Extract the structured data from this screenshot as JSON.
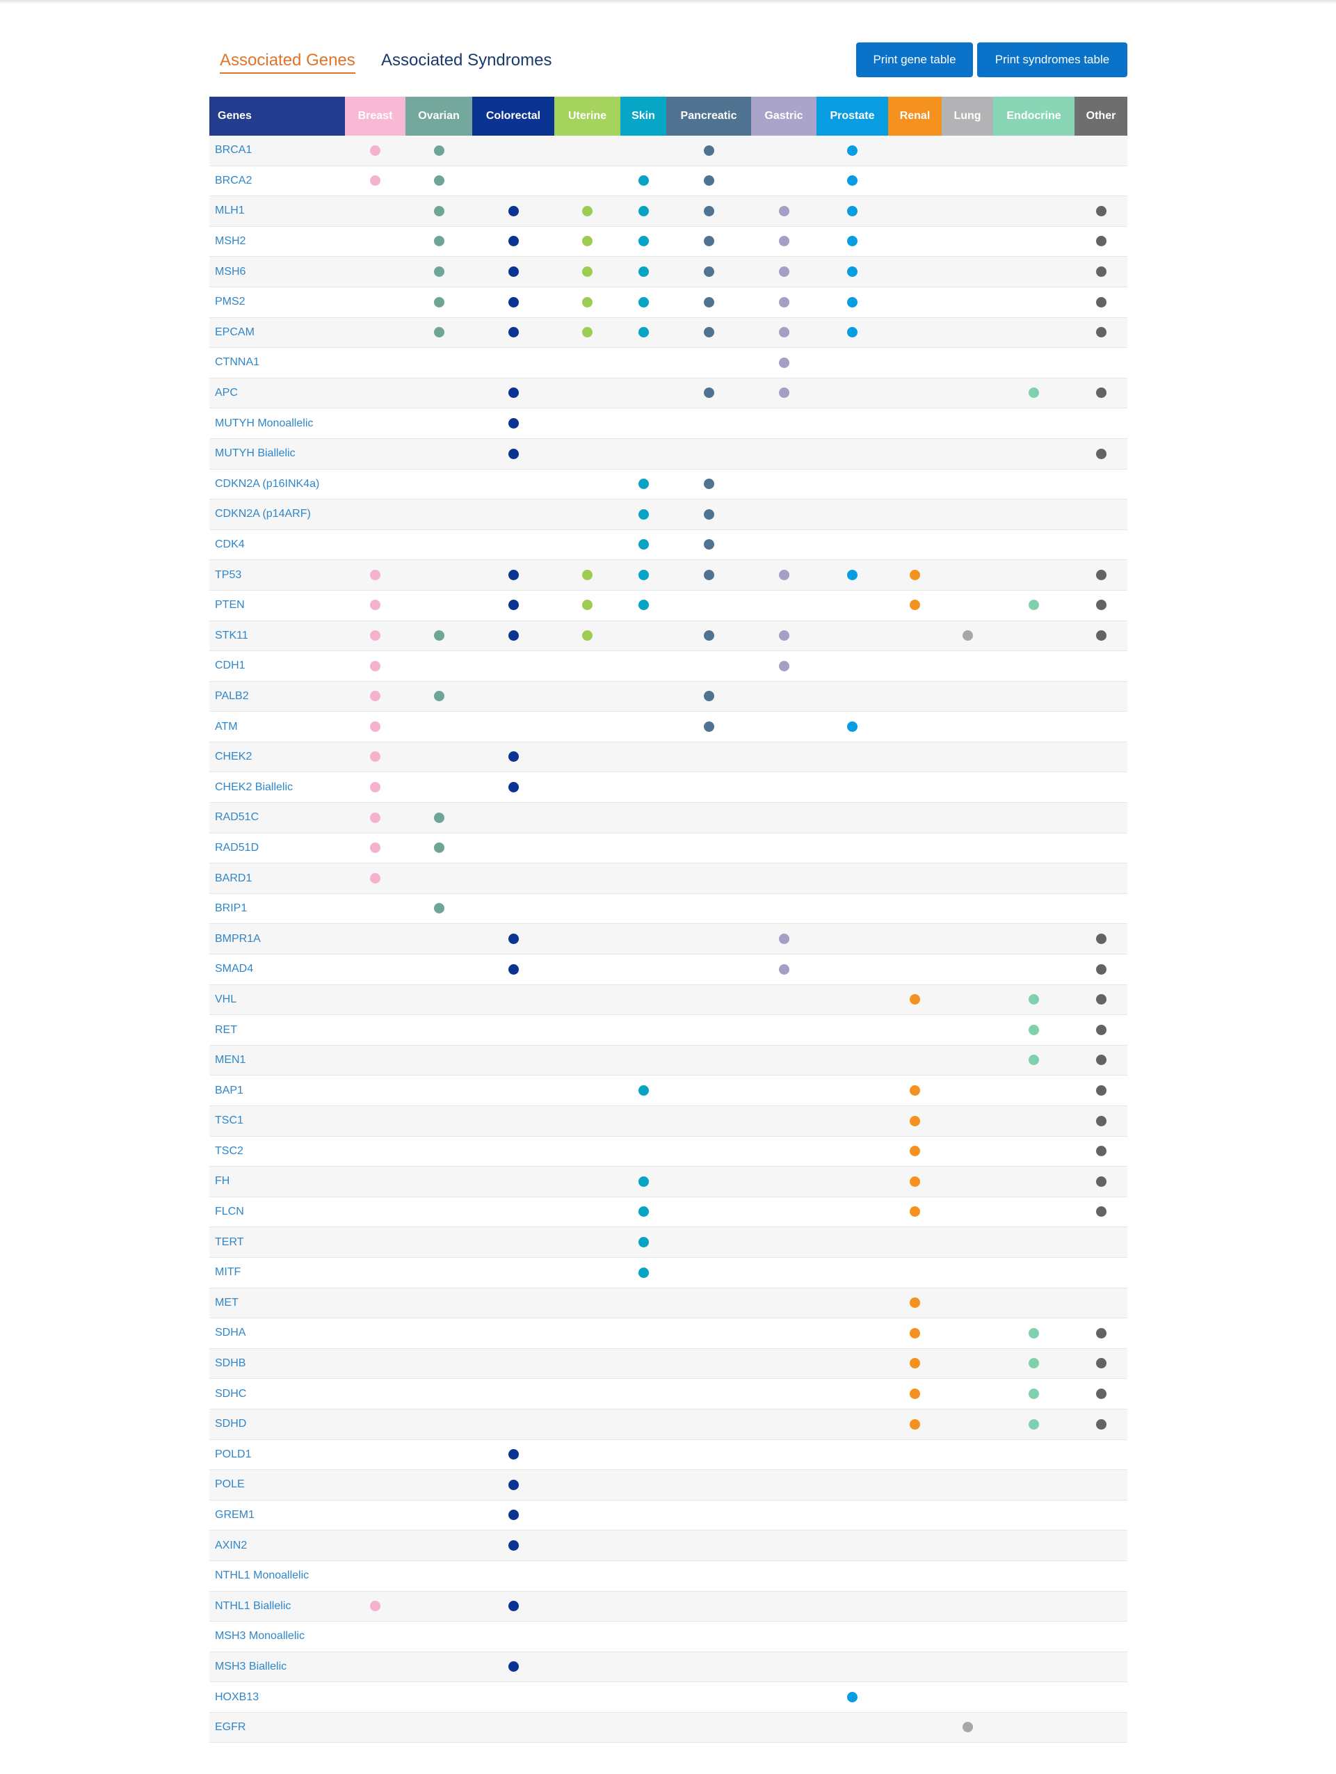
{
  "tabs": {
    "genes": "Associated Genes",
    "syndromes": "Associated Syndromes"
  },
  "buttons": {
    "print_gene": "Print gene table",
    "print_syndromes": "Print syndromes table"
  },
  "columns": [
    {
      "key": "genes",
      "label": "Genes",
      "color": "#233c8d"
    },
    {
      "key": "breast",
      "label": "Breast",
      "color": "#f7b9d4",
      "dot": "#f4b2cf"
    },
    {
      "key": "ovarian",
      "label": "Ovarian",
      "color": "#74a89c",
      "dot": "#6ea596"
    },
    {
      "key": "colorectal",
      "label": "Colorectal",
      "color": "#0b3391",
      "dot": "#0b3391"
    },
    {
      "key": "uterine",
      "label": "Uterine",
      "color": "#a5d35d",
      "dot": "#9dcc55"
    },
    {
      "key": "skin",
      "label": "Skin",
      "color": "#07a6c7",
      "dot": "#07a2c4"
    },
    {
      "key": "pancreatic",
      "label": "Pancreatic",
      "color": "#507391",
      "dot": "#507391"
    },
    {
      "key": "gastric",
      "label": "Gastric",
      "color": "#aaa4ca",
      "dot": "#a49fc5"
    },
    {
      "key": "prostate",
      "label": "Prostate",
      "color": "#089ce2",
      "dot": "#089ce2"
    },
    {
      "key": "renal",
      "label": "Renal",
      "color": "#f5911e",
      "dot": "#f5911e"
    },
    {
      "key": "lung",
      "label": "Lung",
      "color": "#b3b3b5",
      "dot": "#a7a7a9"
    },
    {
      "key": "endocrine",
      "label": "Endocrine",
      "color": "#88d6b6",
      "dot": "#80d0ae"
    },
    {
      "key": "other",
      "label": "Other",
      "color": "#6e6e6e",
      "dot": "#636363"
    }
  ],
  "rows": [
    {
      "gene": "BRCA1",
      "marks": [
        "breast",
        "ovarian",
        "pancreatic",
        "prostate"
      ]
    },
    {
      "gene": "BRCA2",
      "marks": [
        "breast",
        "ovarian",
        "skin",
        "pancreatic",
        "prostate"
      ]
    },
    {
      "gene": "MLH1",
      "marks": [
        "ovarian",
        "colorectal",
        "uterine",
        "skin",
        "pancreatic",
        "gastric",
        "prostate",
        "other"
      ]
    },
    {
      "gene": "MSH2",
      "marks": [
        "ovarian",
        "colorectal",
        "uterine",
        "skin",
        "pancreatic",
        "gastric",
        "prostate",
        "other"
      ]
    },
    {
      "gene": "MSH6",
      "marks": [
        "ovarian",
        "colorectal",
        "uterine",
        "skin",
        "pancreatic",
        "gastric",
        "prostate",
        "other"
      ]
    },
    {
      "gene": "PMS2",
      "marks": [
        "ovarian",
        "colorectal",
        "uterine",
        "skin",
        "pancreatic",
        "gastric",
        "prostate",
        "other"
      ]
    },
    {
      "gene": "EPCAM",
      "marks": [
        "ovarian",
        "colorectal",
        "uterine",
        "skin",
        "pancreatic",
        "gastric",
        "prostate",
        "other"
      ]
    },
    {
      "gene": "CTNNA1",
      "marks": [
        "gastric"
      ]
    },
    {
      "gene": "APC",
      "marks": [
        "colorectal",
        "pancreatic",
        "gastric",
        "endocrine",
        "other"
      ]
    },
    {
      "gene": "MUTYH Monoallelic",
      "marks": [
        "colorectal"
      ]
    },
    {
      "gene": "MUTYH Biallelic",
      "marks": [
        "colorectal",
        "other"
      ]
    },
    {
      "gene": "CDKN2A (p16INK4a)",
      "marks": [
        "skin",
        "pancreatic"
      ]
    },
    {
      "gene": "CDKN2A (p14ARF)",
      "marks": [
        "skin",
        "pancreatic"
      ]
    },
    {
      "gene": "CDK4",
      "marks": [
        "skin",
        "pancreatic"
      ]
    },
    {
      "gene": "TP53",
      "marks": [
        "breast",
        "colorectal",
        "uterine",
        "skin",
        "pancreatic",
        "gastric",
        "prostate",
        "renal",
        "other"
      ]
    },
    {
      "gene": "PTEN",
      "marks": [
        "breast",
        "colorectal",
        "uterine",
        "skin",
        "renal",
        "endocrine",
        "other"
      ]
    },
    {
      "gene": "STK11",
      "marks": [
        "breast",
        "ovarian",
        "colorectal",
        "uterine",
        "pancreatic",
        "gastric",
        "lung",
        "other"
      ]
    },
    {
      "gene": "CDH1",
      "marks": [
        "breast",
        "gastric"
      ]
    },
    {
      "gene": "PALB2",
      "marks": [
        "breast",
        "ovarian",
        "pancreatic"
      ]
    },
    {
      "gene": "ATM",
      "marks": [
        "breast",
        "pancreatic",
        "prostate"
      ]
    },
    {
      "gene": "CHEK2",
      "marks": [
        "breast",
        "colorectal"
      ]
    },
    {
      "gene": "CHEK2 Biallelic",
      "marks": [
        "breast",
        "colorectal"
      ]
    },
    {
      "gene": "RAD51C",
      "marks": [
        "breast",
        "ovarian"
      ]
    },
    {
      "gene": "RAD51D",
      "marks": [
        "breast",
        "ovarian"
      ]
    },
    {
      "gene": "BARD1",
      "marks": [
        "breast"
      ]
    },
    {
      "gene": "BRIP1",
      "marks": [
        "ovarian"
      ]
    },
    {
      "gene": "BMPR1A",
      "marks": [
        "colorectal",
        "gastric",
        "other"
      ]
    },
    {
      "gene": "SMAD4",
      "marks": [
        "colorectal",
        "gastric",
        "other"
      ]
    },
    {
      "gene": "VHL",
      "marks": [
        "renal",
        "endocrine",
        "other"
      ]
    },
    {
      "gene": "RET",
      "marks": [
        "endocrine",
        "other"
      ]
    },
    {
      "gene": "MEN1",
      "marks": [
        "endocrine",
        "other"
      ]
    },
    {
      "gene": "BAP1",
      "marks": [
        "skin",
        "renal",
        "other"
      ]
    },
    {
      "gene": "TSC1",
      "marks": [
        "renal",
        "other"
      ]
    },
    {
      "gene": "TSC2",
      "marks": [
        "renal",
        "other"
      ]
    },
    {
      "gene": "FH",
      "marks": [
        "skin",
        "renal",
        "other"
      ]
    },
    {
      "gene": "FLCN",
      "marks": [
        "skin",
        "renal",
        "other"
      ]
    },
    {
      "gene": "TERT",
      "marks": [
        "skin"
      ]
    },
    {
      "gene": "MITF",
      "marks": [
        "skin"
      ]
    },
    {
      "gene": "MET",
      "marks": [
        "renal"
      ]
    },
    {
      "gene": "SDHA",
      "marks": [
        "renal",
        "endocrine",
        "other"
      ]
    },
    {
      "gene": "SDHB",
      "marks": [
        "renal",
        "endocrine",
        "other"
      ]
    },
    {
      "gene": "SDHC",
      "marks": [
        "renal",
        "endocrine",
        "other"
      ]
    },
    {
      "gene": "SDHD",
      "marks": [
        "renal",
        "endocrine",
        "other"
      ]
    },
    {
      "gene": "POLD1",
      "marks": [
        "colorectal"
      ]
    },
    {
      "gene": "POLE",
      "marks": [
        "colorectal"
      ]
    },
    {
      "gene": "GREM1",
      "marks": [
        "colorectal"
      ]
    },
    {
      "gene": "AXIN2",
      "marks": [
        "colorectal"
      ]
    },
    {
      "gene": "NTHL1 Monoallelic",
      "marks": []
    },
    {
      "gene": "NTHL1 Biallelic",
      "marks": [
        "breast",
        "colorectal"
      ]
    },
    {
      "gene": "MSH3 Monoallelic",
      "marks": []
    },
    {
      "gene": "MSH3 Biallelic",
      "marks": [
        "colorectal"
      ]
    },
    {
      "gene": "HOXB13",
      "marks": [
        "prostate"
      ]
    },
    {
      "gene": "EGFR",
      "marks": [
        "lung"
      ]
    }
  ]
}
